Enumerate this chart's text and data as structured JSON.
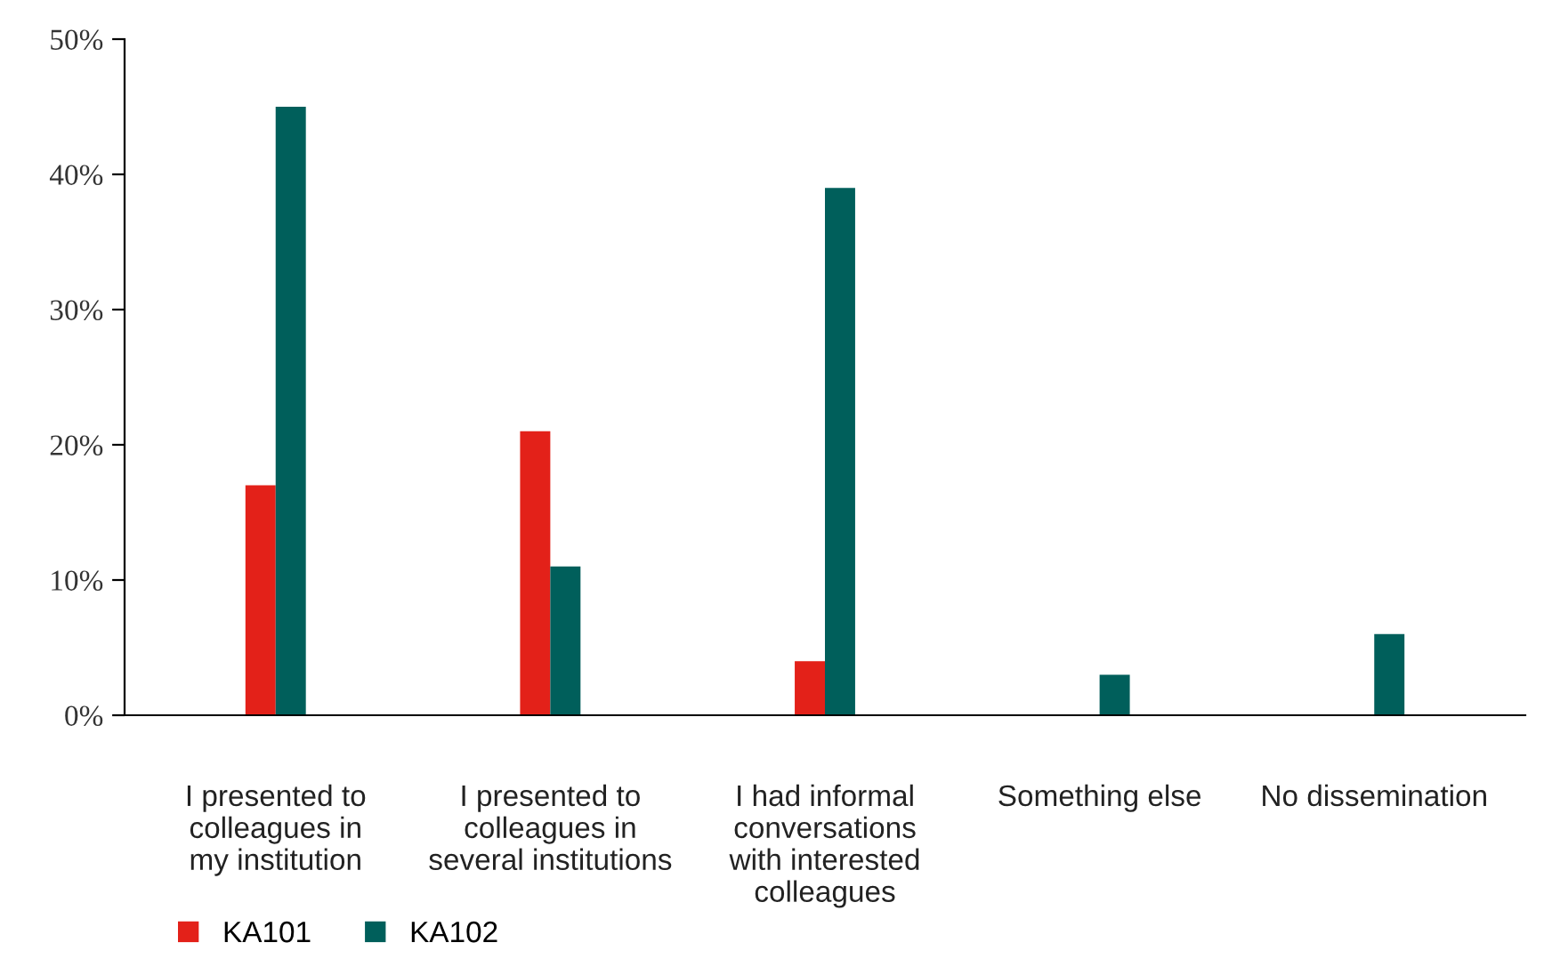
{
  "chart_data": {
    "type": "bar",
    "categories": [
      "I presented to\ncolleagues in\nmy institution",
      "I presented to\ncolleagues in\nseveral institutions",
      "I had informal\nconversations\nwith interested\ncolleagues",
      "Something else",
      "No dissemination"
    ],
    "series": [
      {
        "name": "KA101",
        "color": "#e32119",
        "values": [
          17,
          21,
          4,
          null,
          null
        ]
      },
      {
        "name": "KA102",
        "color": "#005f5b",
        "values": [
          45,
          11,
          39,
          3,
          6
        ]
      }
    ],
    "ylim": [
      0,
      50
    ],
    "yticks": [
      {
        "value": 0,
        "label": "0%"
      },
      {
        "value": 10,
        "label": "10%"
      },
      {
        "value": 20,
        "label": "20%"
      },
      {
        "value": 30,
        "label": "30%"
      },
      {
        "value": 40,
        "label": "40%"
      },
      {
        "value": 50,
        "label": "50%"
      }
    ],
    "grid": false,
    "legend": "bottom left"
  }
}
